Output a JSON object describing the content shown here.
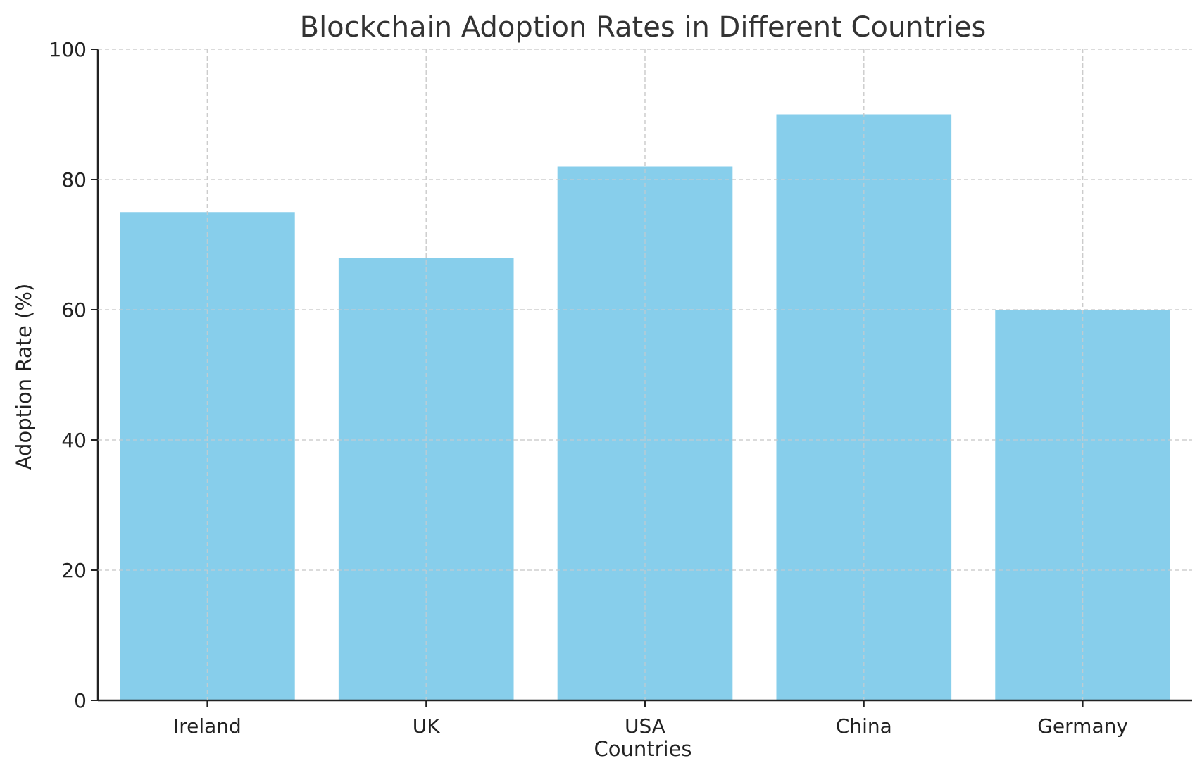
{
  "chart_data": {
    "type": "bar",
    "title": "Blockchain Adoption Rates in Different Countries",
    "xlabel": "Countries",
    "ylabel": "Adoption Rate (%)",
    "categories": [
      "Ireland",
      "UK",
      "USA",
      "China",
      "Germany"
    ],
    "values": [
      75,
      68,
      82,
      90,
      60
    ],
    "ylim": [
      0,
      100
    ],
    "yticks": [
      0,
      20,
      40,
      60,
      80,
      100
    ],
    "grid": true,
    "legend": "none",
    "colors": {
      "bar": "#87CEEB",
      "grid": "#cccccc",
      "axis": "#222222",
      "title": "#333333"
    }
  }
}
